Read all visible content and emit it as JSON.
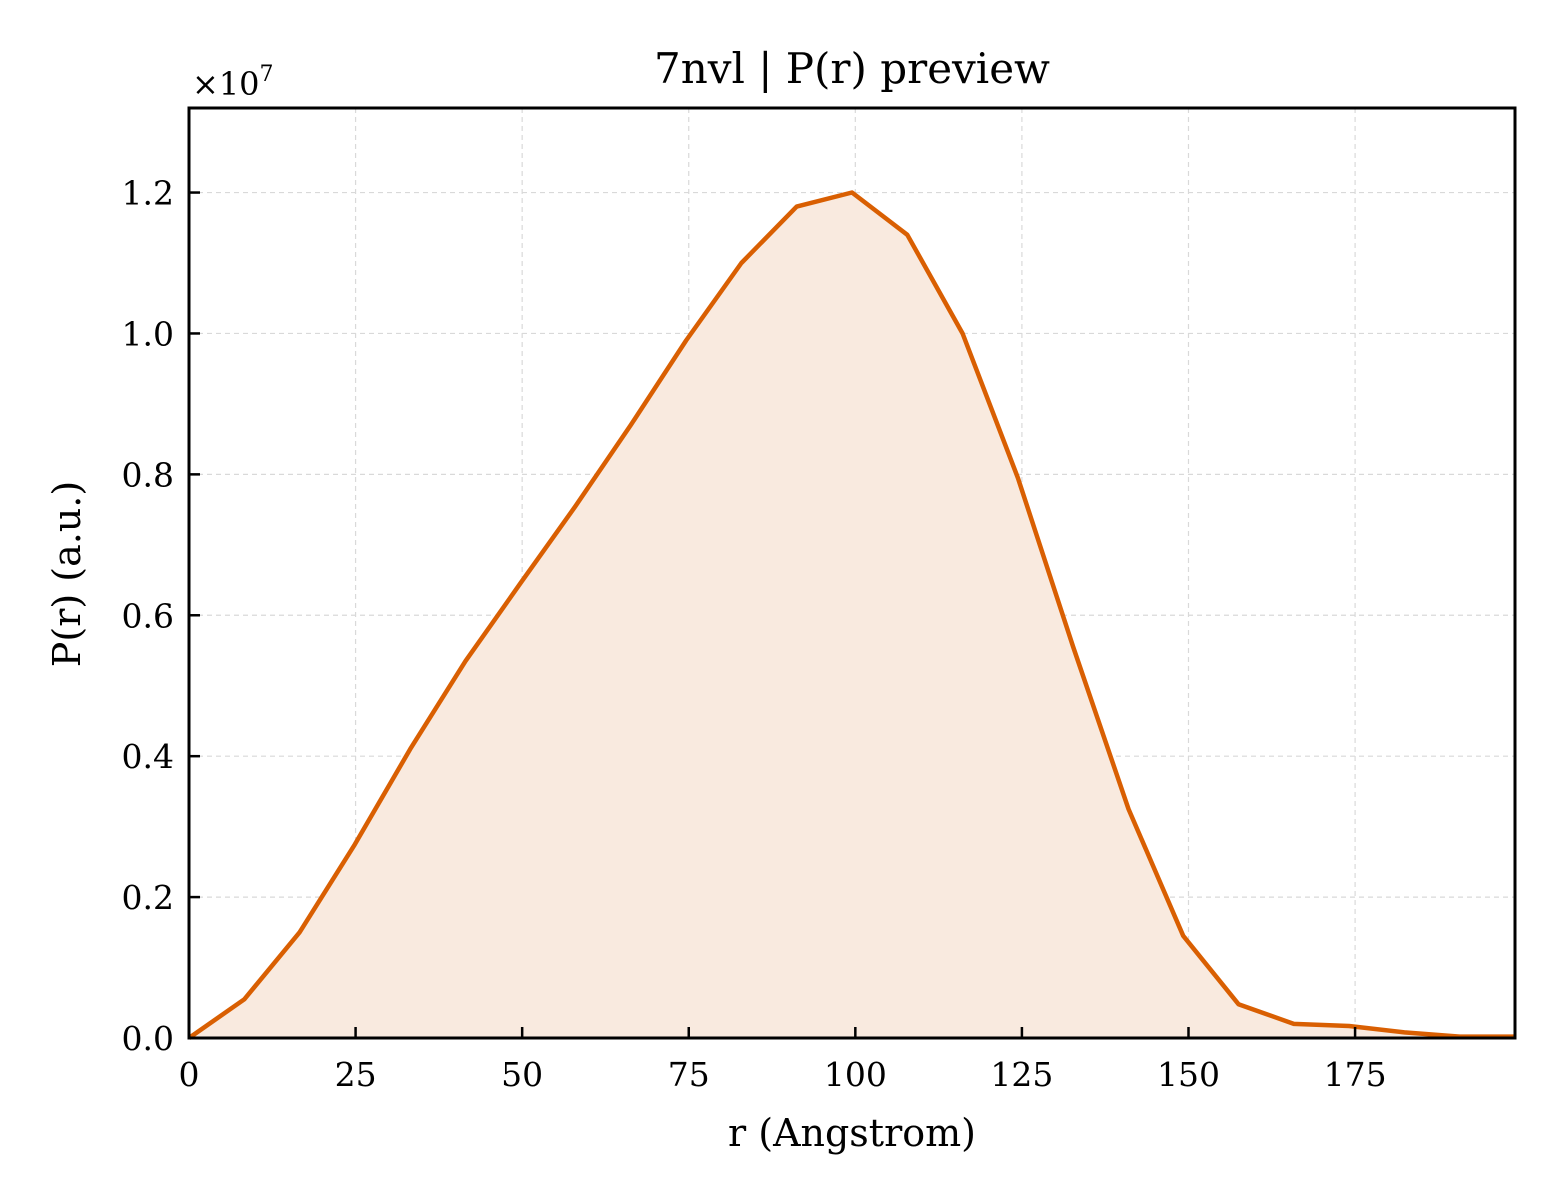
{
  "chart_data": {
    "type": "area",
    "title": "7nvl | P(r) preview",
    "xlabel": "r (Angstrom)",
    "ylabel": "P(r) (a.u.)",
    "y_offset_label": "×10",
    "y_offset_exponent": "7",
    "xlim": [
      0,
      199
    ],
    "ylim": [
      0,
      1.32
    ],
    "y_scale_factor": 10000000,
    "x_ticks": [
      0,
      25,
      50,
      75,
      100,
      125,
      150,
      175
    ],
    "x_tick_labels": [
      "0",
      "25",
      "50",
      "75",
      "100",
      "125",
      "150",
      "175"
    ],
    "y_ticks": [
      0,
      0.2,
      0.4,
      0.6,
      0.8,
      1.0,
      1.2
    ],
    "y_tick_labels": [
      "0.0",
      "0.2",
      "0.4",
      "0.6",
      "0.8",
      "1.0",
      "1.2"
    ],
    "grid": true,
    "series": [
      {
        "x": [
          0,
          8.3,
          16.6,
          24.9,
          33.2,
          41.5,
          49.7,
          58.0,
          66.3,
          74.6,
          82.9,
          91.2,
          99.5,
          107.8,
          116.1,
          124.4,
          132.7,
          141.0,
          149.2,
          157.5,
          165.8,
          174.1,
          182.4,
          190.7,
          199.0
        ],
        "values": [
          0.0,
          0.055,
          0.15,
          0.275,
          0.41,
          0.535,
          0.645,
          0.755,
          0.87,
          0.99,
          1.1,
          1.18,
          1.2,
          1.14,
          1.0,
          0.795,
          0.555,
          0.325,
          0.145,
          0.048,
          0.02,
          0.017,
          0.008,
          0.002,
          0.002
        ]
      }
    ],
    "colors": {
      "line": "#d95f02",
      "fill": "#f9eadf",
      "grid": "#d9d9d9",
      "axes": "#000000"
    }
  }
}
